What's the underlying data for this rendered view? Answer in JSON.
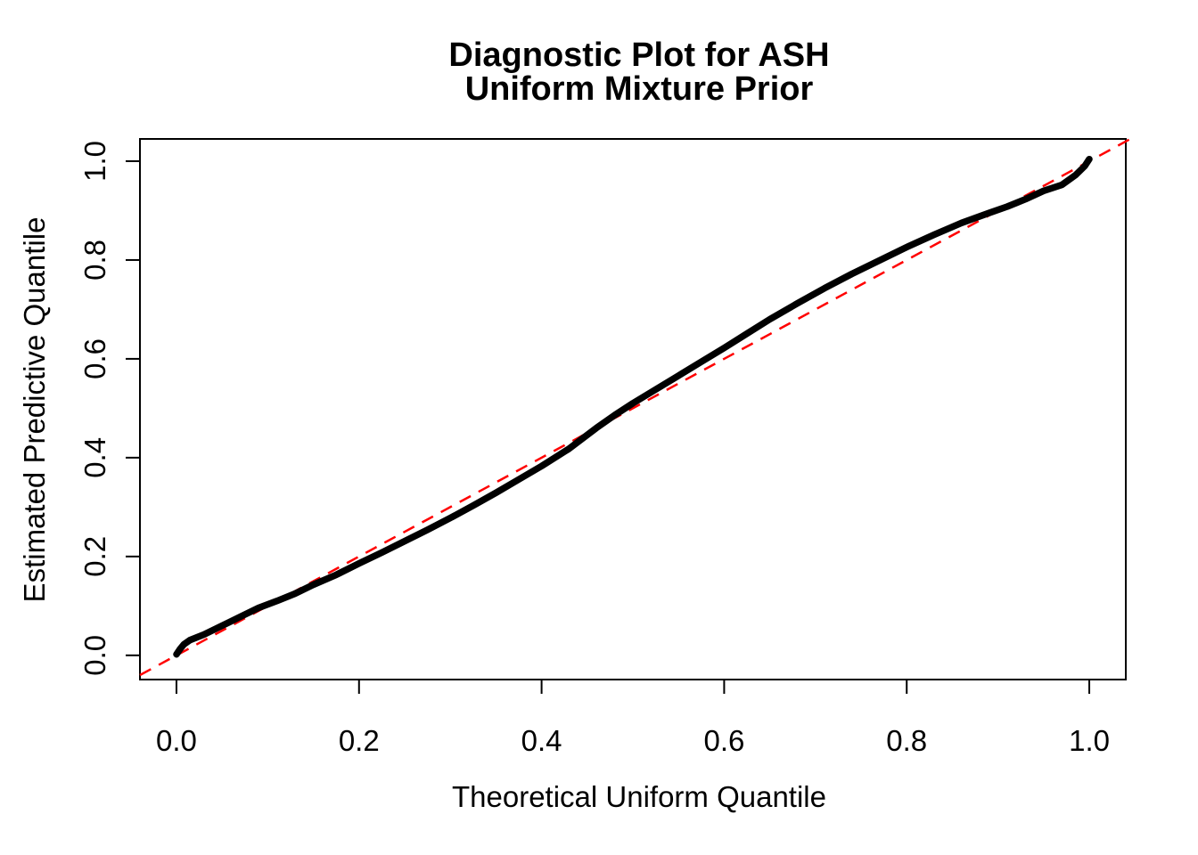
{
  "chart_data": {
    "type": "scatter",
    "title": "Diagnostic Plot for ASH",
    "subtitle": "Uniform Mixture Prior",
    "xlabel": "Theoretical Uniform Quantile",
    "ylabel": "Estimated Predictive Quantile",
    "xlim": [
      0,
      1
    ],
    "ylim": [
      0,
      1
    ],
    "usr_x": [
      -0.04,
      1.04
    ],
    "usr_y": [
      -0.049,
      1.045
    ],
    "grid": false,
    "legend_position": "none",
    "x_ticks": [
      0.0,
      0.2,
      0.4,
      0.6,
      0.8,
      1.0
    ],
    "x_tick_labels": [
      "0.0",
      "0.2",
      "0.4",
      "0.6",
      "0.8",
      "1.0"
    ],
    "y_ticks": [
      0.0,
      0.2,
      0.4,
      0.6,
      0.8,
      1.0
    ],
    "y_tick_labels": [
      "0.0",
      "0.2",
      "0.4",
      "0.6",
      "0.8",
      "1.0"
    ],
    "series": [
      {
        "name": "reference-diagonal",
        "type": "line",
        "color": "#FF0000",
        "style": "dashed",
        "from": [
          -0.04,
          -0.04
        ],
        "to": [
          1.045,
          1.045
        ]
      },
      {
        "name": "estimated-predictive-quantiles",
        "type": "points-curve",
        "color": "#000000",
        "points": [
          [
            0.0,
            0.002
          ],
          [
            0.004,
            0.013
          ],
          [
            0.008,
            0.022
          ],
          [
            0.015,
            0.031
          ],
          [
            0.03,
            0.042
          ],
          [
            0.05,
            0.06
          ],
          [
            0.07,
            0.078
          ],
          [
            0.09,
            0.096
          ],
          [
            0.11,
            0.11
          ],
          [
            0.13,
            0.125
          ],
          [
            0.15,
            0.143
          ],
          [
            0.175,
            0.163
          ],
          [
            0.2,
            0.186
          ],
          [
            0.225,
            0.208
          ],
          [
            0.25,
            0.231
          ],
          [
            0.275,
            0.254
          ],
          [
            0.3,
            0.278
          ],
          [
            0.325,
            0.303
          ],
          [
            0.35,
            0.329
          ],
          [
            0.375,
            0.356
          ],
          [
            0.4,
            0.383
          ],
          [
            0.43,
            0.418
          ],
          [
            0.46,
            0.46
          ],
          [
            0.48,
            0.486
          ],
          [
            0.5,
            0.51
          ],
          [
            0.525,
            0.538
          ],
          [
            0.55,
            0.566
          ],
          [
            0.575,
            0.594
          ],
          [
            0.6,
            0.622
          ],
          [
            0.625,
            0.651
          ],
          [
            0.65,
            0.68
          ],
          [
            0.68,
            0.712
          ],
          [
            0.71,
            0.743
          ],
          [
            0.74,
            0.772
          ],
          [
            0.77,
            0.799
          ],
          [
            0.8,
            0.826
          ],
          [
            0.83,
            0.851
          ],
          [
            0.86,
            0.875
          ],
          [
            0.89,
            0.895
          ],
          [
            0.91,
            0.908
          ],
          [
            0.93,
            0.923
          ],
          [
            0.95,
            0.94
          ],
          [
            0.97,
            0.952
          ],
          [
            0.985,
            0.972
          ],
          [
            0.995,
            0.99
          ],
          [
            1.0,
            1.004
          ]
        ]
      }
    ]
  },
  "colors": {
    "background": "#FFFFFF",
    "curve": "#000000",
    "reference_line": "#FF0000",
    "text": "#000000",
    "box": "#000000"
  }
}
